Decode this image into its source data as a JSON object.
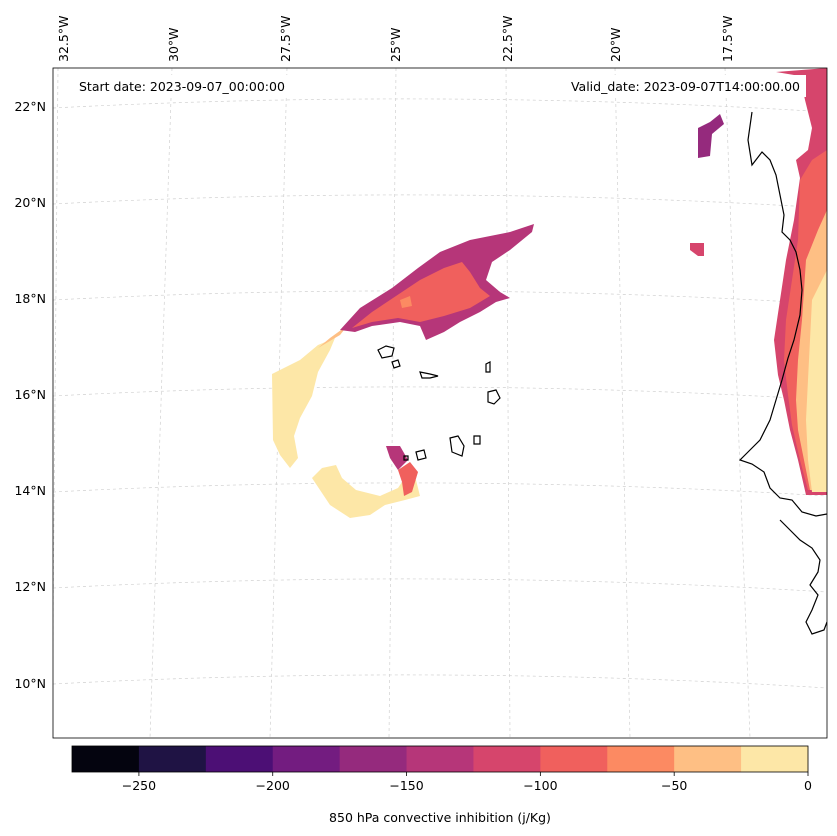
{
  "map": {
    "start_date_label": "Start date: 2023-09-07_00:00:00",
    "valid_date_label": "Valid_date: 2023-09-07T14:00:00.00",
    "lon_labels": [
      "32.5°W",
      "30°W",
      "27.5°W",
      "25°W",
      "22.5°W",
      "20°W",
      "17.5°W"
    ],
    "lat_labels": [
      "22°N",
      "20°N",
      "18°N",
      "16°N",
      "14°N",
      "12°N",
      "10°N"
    ],
    "gridlines": "dashed",
    "variable": "850 hPa convective inhibition"
  },
  "colorbar": {
    "title": "850 hPa convective inhibition (j/Kg)",
    "ticks": [
      "−250",
      "−200",
      "−150",
      "−100",
      "−50",
      "0"
    ],
    "range": [
      -275,
      0
    ],
    "step": 25,
    "colors": [
      "#04040f",
      "#1f1344",
      "#4c0f75",
      "#731c80",
      "#952a7d",
      "#b63679",
      "#d6456c",
      "#f0605d",
      "#fc8a62",
      "#febf84",
      "#fde7a7"
    ]
  }
}
